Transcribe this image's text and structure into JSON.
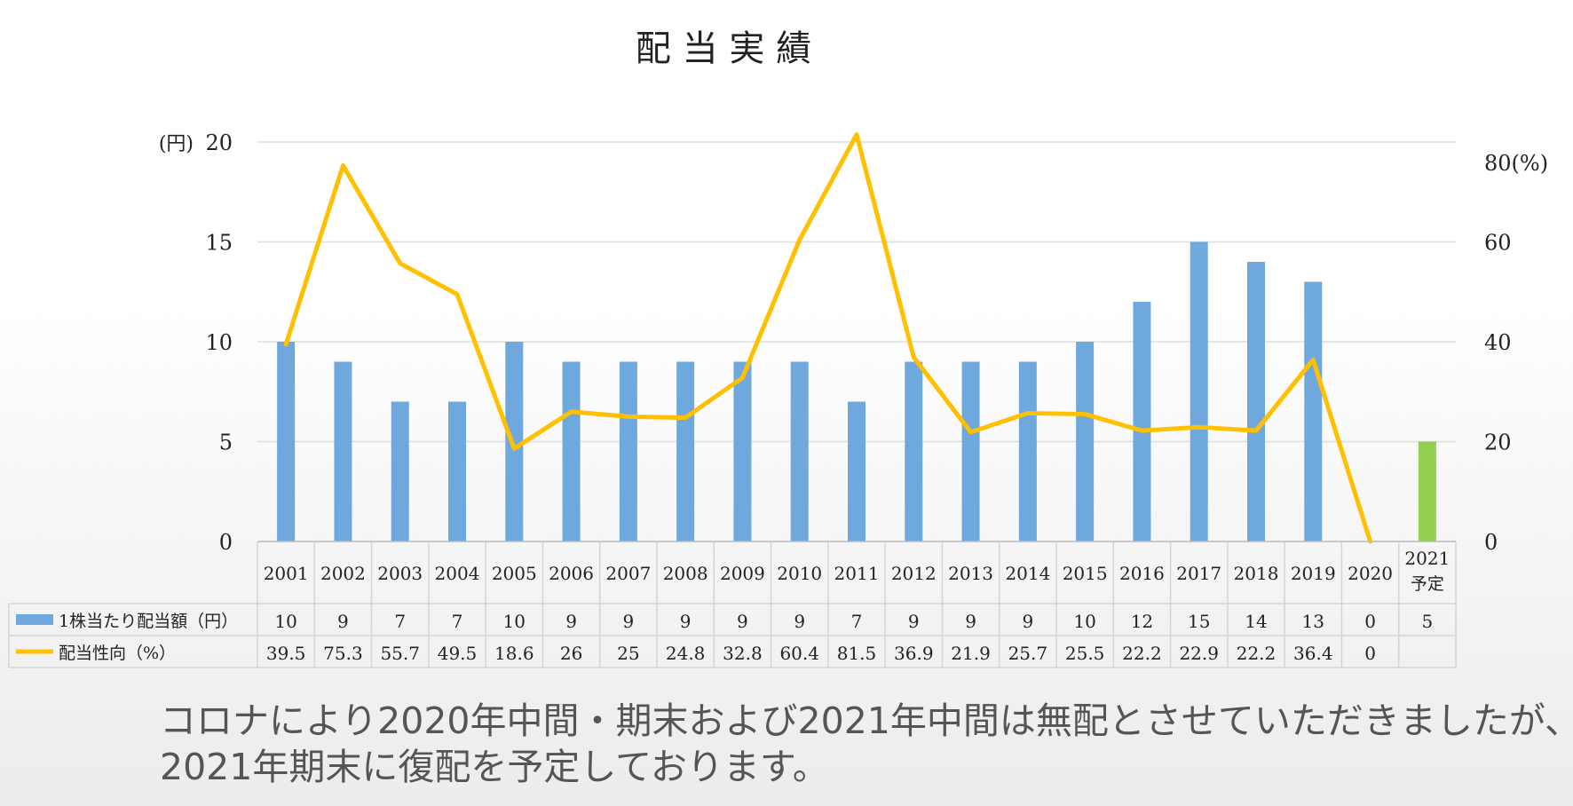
{
  "chart_data": {
    "type": "bar+line",
    "title": "配 当 実 績",
    "left_axis": {
      "unit": "(円)",
      "ticks": [
        "0",
        "5",
        "10",
        "15",
        "20"
      ],
      "ylim": [
        0,
        20
      ]
    },
    "right_axis": {
      "unit": "80(%)",
      "ticks": [
        "0",
        "20",
        "40",
        "60"
      ],
      "ylim": [
        0,
        80
      ]
    },
    "categories": [
      "2001",
      "2002",
      "2003",
      "2004",
      "2005",
      "2006",
      "2007",
      "2008",
      "2009",
      "2010",
      "2011",
      "2012",
      "2013",
      "2014",
      "2015",
      "2016",
      "2017",
      "2018",
      "2019",
      "2020",
      "2021"
    ],
    "category_sub": [
      "",
      "",
      "",
      "",
      "",
      "",
      "",
      "",
      "",
      "",
      "",
      "",
      "",
      "",
      "",
      "",
      "",
      "",
      "",
      "",
      "予定"
    ],
    "series": [
      {
        "name": "1株当たり配当額（円）",
        "kind": "bar",
        "axis": "left",
        "color": "#6fa8dc",
        "highlight_color": "#92d050",
        "highlight_index": 20,
        "values": [
          10,
          9,
          7,
          7,
          10,
          9,
          9,
          9,
          9,
          9,
          7,
          9,
          9,
          9,
          10,
          12,
          15,
          14,
          13,
          0,
          5
        ],
        "labels": [
          "10",
          "9",
          "7",
          "7",
          "10",
          "9",
          "9",
          "9",
          "9",
          "9",
          "7",
          "9",
          "9",
          "9",
          "10",
          "12",
          "15",
          "14",
          "13",
          "0",
          "5"
        ]
      },
      {
        "name": "配当性向（%）",
        "kind": "line",
        "axis": "right",
        "color": "#ffc000",
        "values": [
          39.5,
          75.3,
          55.7,
          49.5,
          18.6,
          26,
          25,
          24.8,
          32.8,
          60.4,
          81.5,
          36.9,
          21.9,
          25.7,
          25.5,
          22.2,
          22.9,
          22.2,
          36.4,
          0,
          null
        ],
        "labels": [
          "39.5",
          "75.3",
          "55.7",
          "49.5",
          "18.6",
          "26",
          "25",
          "24.8",
          "32.8",
          "60.4",
          "81.5",
          "36.9",
          "21.9",
          "25.7",
          "25.5",
          "22.2",
          "22.9",
          "22.2",
          "36.4",
          "0",
          ""
        ]
      }
    ],
    "grid": true,
    "legend": "data-table-below"
  },
  "note": {
    "line1": "コロナにより2020年中間・期末および2021年中間は無配とさせていただきましたが、",
    "line2": "2021年期末に復配を予定しております。"
  }
}
